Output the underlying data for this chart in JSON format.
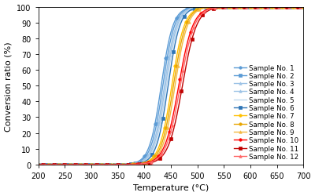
{
  "title": "",
  "xlabel": "Temperature (°C)",
  "ylabel": "Conversion ratio (%)",
  "xlim": [
    200,
    700
  ],
  "ylim": [
    0,
    100
  ],
  "xticks": [
    200,
    250,
    300,
    350,
    400,
    450,
    500,
    550,
    600,
    650,
    700
  ],
  "yticks": [
    0,
    10,
    20,
    30,
    40,
    50,
    60,
    70,
    80,
    90,
    100
  ],
  "samples": [
    {
      "label": "Sample No. 1",
      "color": "#5B9BD5",
      "marker": "o",
      "midpoint": 432,
      "k": 0.09
    },
    {
      "label": "Sample No. 2",
      "color": "#5B9BD5",
      "marker": "s",
      "midpoint": 435,
      "k": 0.09
    },
    {
      "label": "Sample No. 3",
      "color": "#9DC3E6",
      "marker": "^",
      "midpoint": 438,
      "k": 0.09
    },
    {
      "label": "Sample No. 4",
      "color": "#9DC3E6",
      "marker": "^",
      "midpoint": 440,
      "k": 0.09
    },
    {
      "label": "Sample No. 5",
      "color": "#BDD7EE",
      "marker": "None",
      "midpoint": 442,
      "k": 0.09
    },
    {
      "label": "Sample No. 6",
      "color": "#2E75B6",
      "marker": "s",
      "midpoint": 445,
      "k": 0.09
    },
    {
      "label": "Sample No. 7",
      "color": "#FFC000",
      "marker": "o",
      "midpoint": 452,
      "k": 0.085
    },
    {
      "label": "Sample No. 8",
      "color": "#E8A600",
      "marker": "o",
      "midpoint": 455,
      "k": 0.085
    },
    {
      "label": "Sample No. 9",
      "color": "#F4B942",
      "marker": "^",
      "midpoint": 458,
      "k": 0.085
    },
    {
      "label": "Sample No. 10",
      "color": "#FF0000",
      "marker": "o",
      "midpoint": 465,
      "k": 0.075
    },
    {
      "label": "Sample No. 11",
      "color": "#C00000",
      "marker": "s",
      "midpoint": 472,
      "k": 0.075
    },
    {
      "label": "Sample No. 12",
      "color": "#FF6666",
      "marker": "^",
      "midpoint": 468,
      "k": 0.075
    }
  ],
  "background_color": "#ffffff",
  "legend_fontsize": 6.2,
  "axis_fontsize": 8,
  "tick_fontsize": 7
}
